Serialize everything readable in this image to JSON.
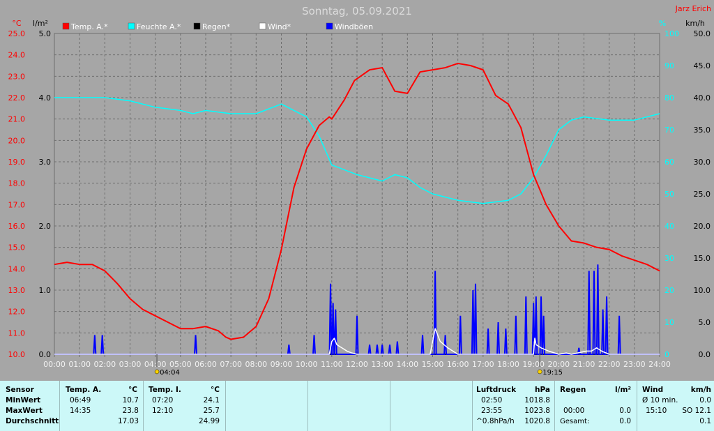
{
  "header": {
    "title": "Sonntag, 05.09.2021",
    "author": "Jarz Erich"
  },
  "units": {
    "temp": "°C",
    "rain": "l/m²",
    "humidity": "%",
    "wind": "km/h"
  },
  "legend": [
    {
      "label": "Temp. A.*",
      "color": "#ff0000"
    },
    {
      "label": "Feuchte A.*",
      "color": "#00ffff"
    },
    {
      "label": "Regen*",
      "color": "#000000"
    },
    {
      "label": "Wind*",
      "color": "#ffffff"
    },
    {
      "label": "Windböen",
      "color": "#0000ff"
    }
  ],
  "sun": {
    "sunrise": "04:04",
    "sunset": "19:15"
  },
  "chart_data": {
    "type": "line",
    "title": "Sonntag, 05.09.2021",
    "grid": true,
    "x_ticks": [
      "00:00",
      "01:00",
      "02:00",
      "03:00",
      "04:00",
      "05:00",
      "06:00",
      "07:00",
      "08:00",
      "09:00",
      "10:00",
      "11:00",
      "12:00",
      "13:00",
      "14:00",
      "15:00",
      "16:00",
      "17:00",
      "18:00",
      "19:00",
      "20:00",
      "21:00",
      "22:00",
      "23:00",
      "24:00"
    ],
    "xlim": [
      0,
      24
    ],
    "axes": {
      "temp": {
        "label": "°C",
        "ylim": [
          10,
          25
        ],
        "ticks": [
          "10.0",
          "11.0",
          "12.0",
          "13.0",
          "14.0",
          "15.0",
          "16.0",
          "17.0",
          "18.0",
          "19.0",
          "20.0",
          "21.0",
          "22.0",
          "23.0",
          "24.0",
          "25.0"
        ]
      },
      "rain": {
        "label": "l/m²",
        "ylim": [
          0,
          5
        ],
        "ticks": [
          "0.0",
          "1.0",
          "2.0",
          "3.0",
          "4.0",
          "5.0"
        ]
      },
      "humidity": {
        "label": "%",
        "ylim": [
          0,
          100
        ],
        "ticks": [
          "0",
          "10",
          "20",
          "30",
          "40",
          "50",
          "60",
          "70",
          "80",
          "90",
          "100"
        ]
      },
      "wind": {
        "label": "km/h",
        "ylim": [
          0,
          50
        ],
        "ticks": [
          "0.0",
          "5.0",
          "10.0",
          "15.0",
          "20.0",
          "25.0",
          "30.0",
          "35.0",
          "40.0",
          "45.0",
          "50.0"
        ]
      }
    },
    "series": [
      {
        "name": "Temp. A.*",
        "axis": "temp",
        "color": "#ff0000",
        "x": [
          0,
          0.5,
          1,
          1.5,
          2,
          2.5,
          3,
          3.5,
          4,
          4.5,
          5,
          5.5,
          6,
          6.5,
          6.8,
          7,
          7.5,
          8,
          8.5,
          9,
          9.5,
          10,
          10.5,
          10.9,
          11,
          11.5,
          11.9,
          12.5,
          13,
          13.5,
          14,
          14.5,
          15,
          15.5,
          16,
          16.5,
          17,
          17.5,
          18,
          18.5,
          19,
          19.5,
          20,
          20.5,
          21,
          21.5,
          22,
          22.5,
          23,
          23.5,
          24
        ],
        "y": [
          14.2,
          14.3,
          14.2,
          14.2,
          13.9,
          13.3,
          12.6,
          12.1,
          11.8,
          11.5,
          11.2,
          11.2,
          11.3,
          11.1,
          10.8,
          10.7,
          10.8,
          11.3,
          12.6,
          14.9,
          17.8,
          19.6,
          20.7,
          21.1,
          21.0,
          21.9,
          22.8,
          23.3,
          23.4,
          22.3,
          22.2,
          23.2,
          23.3,
          23.4,
          23.6,
          23.5,
          23.3,
          22.1,
          21.7,
          20.6,
          18.4,
          17.0,
          16.0,
          15.3,
          15.2,
          15.0,
          14.9,
          14.6,
          14.4,
          14.2,
          13.9
        ]
      },
      {
        "name": "Feuchte A.*",
        "axis": "humidity",
        "color": "#00ffff",
        "x": [
          0,
          1,
          2,
          3,
          4,
          5,
          5.5,
          6,
          7,
          8,
          9,
          9.5,
          10,
          10.5,
          11,
          12,
          13,
          13.5,
          14,
          14.5,
          15,
          16,
          17,
          18,
          18.5,
          19,
          19.5,
          20,
          20.5,
          21,
          22,
          23,
          24
        ],
        "y": [
          80,
          80,
          80,
          79,
          77,
          76,
          75,
          76,
          75,
          75,
          78,
          76,
          74,
          68,
          59,
          56,
          54,
          56,
          55,
          52,
          50,
          48,
          47,
          48,
          50,
          55,
          62,
          70,
          73,
          74,
          73,
          73,
          75
        ]
      },
      {
        "name": "Wind*",
        "axis": "wind",
        "color": "#ffffff",
        "x": [
          0,
          10.9,
          11.0,
          11.1,
          11.2,
          11.4,
          11.6,
          11.8,
          12,
          14.9,
          15.0,
          15.1,
          15.3,
          15.6,
          16,
          19.0,
          19.05,
          19.1,
          19.3,
          19.6,
          20,
          20.3,
          20.5,
          21.1,
          21.3,
          21.5,
          21.7,
          22,
          24
        ],
        "y": [
          0,
          0,
          2,
          2.5,
          1.5,
          1,
          0.5,
          0.2,
          0,
          0,
          2,
          4,
          2,
          1,
          0,
          0,
          2.5,
          1.5,
          1,
          0.5,
          0,
          0.2,
          0,
          0.5,
          0.5,
          1,
          0.5,
          0,
          0
        ]
      },
      {
        "name": "Windböen",
        "axis": "wind",
        "color": "#0000ff",
        "spikes": [
          [
            1.6,
            3
          ],
          [
            1.9,
            3
          ],
          [
            5.6,
            3
          ],
          [
            9.3,
            1.5
          ],
          [
            10.3,
            3
          ],
          [
            10.95,
            11
          ],
          [
            11.05,
            8
          ],
          [
            11.15,
            7
          ],
          [
            12,
            6
          ],
          [
            12.5,
            1.5
          ],
          [
            12.8,
            1.5
          ],
          [
            13.0,
            1.5
          ],
          [
            13.3,
            1.5
          ],
          [
            13.6,
            2
          ],
          [
            14.6,
            3
          ],
          [
            15.1,
            13
          ],
          [
            15.5,
            3
          ],
          [
            16.1,
            6
          ],
          [
            16.6,
            10
          ],
          [
            16.7,
            11
          ],
          [
            17.2,
            4
          ],
          [
            17.6,
            5
          ],
          [
            17.9,
            4
          ],
          [
            18.3,
            6
          ],
          [
            18.7,
            9
          ],
          [
            19.0,
            8
          ],
          [
            19.1,
            9
          ],
          [
            19.3,
            9
          ],
          [
            19.4,
            6
          ],
          [
            20.8,
            1
          ],
          [
            21.2,
            13
          ],
          [
            21.4,
            13
          ],
          [
            21.55,
            14
          ],
          [
            21.75,
            7
          ],
          [
            21.9,
            9
          ],
          [
            22.4,
            6
          ]
        ]
      },
      {
        "name": "Regen*",
        "axis": "rain",
        "color": "#000000",
        "x": [
          0,
          24
        ],
        "y": [
          0,
          0
        ]
      }
    ]
  },
  "table": {
    "sensor": {
      "header": "Sensor",
      "rows": [
        "MinWert",
        "MaxWert",
        "Durchschnitt"
      ]
    },
    "temp_a": {
      "header": "Temp. A.",
      "unit": "°C",
      "times": [
        "06:49",
        "14:35",
        ""
      ],
      "values": [
        "10.7",
        "23.8",
        "17.03"
      ]
    },
    "temp_i": {
      "header": "Temp. I.",
      "unit": "°C",
      "times": [
        "07:20",
        "12:10",
        ""
      ],
      "values": [
        "24.1",
        "25.7",
        "24.99"
      ]
    },
    "pressure": {
      "header": "Luftdruck",
      "unit": "hPa",
      "times": [
        "02:50",
        "23:55",
        "^0.8hPa/h"
      ],
      "values": [
        "1018.8",
        "1023.8",
        "1020.8"
      ]
    },
    "rain": {
      "header": "Regen",
      "unit": "l/m²",
      "times": [
        "",
        "00:00",
        "Gesamt:"
      ],
      "values": [
        "",
        "0.0",
        "0.0"
      ],
      "row1_value": "0.0"
    },
    "wind": {
      "header": "Wind",
      "unit": "km/h",
      "labels": [
        "Ø 10 min.",
        "15:10",
        ""
      ],
      "values": [
        "0.0",
        "SO 12.1",
        "0.1"
      ]
    }
  }
}
